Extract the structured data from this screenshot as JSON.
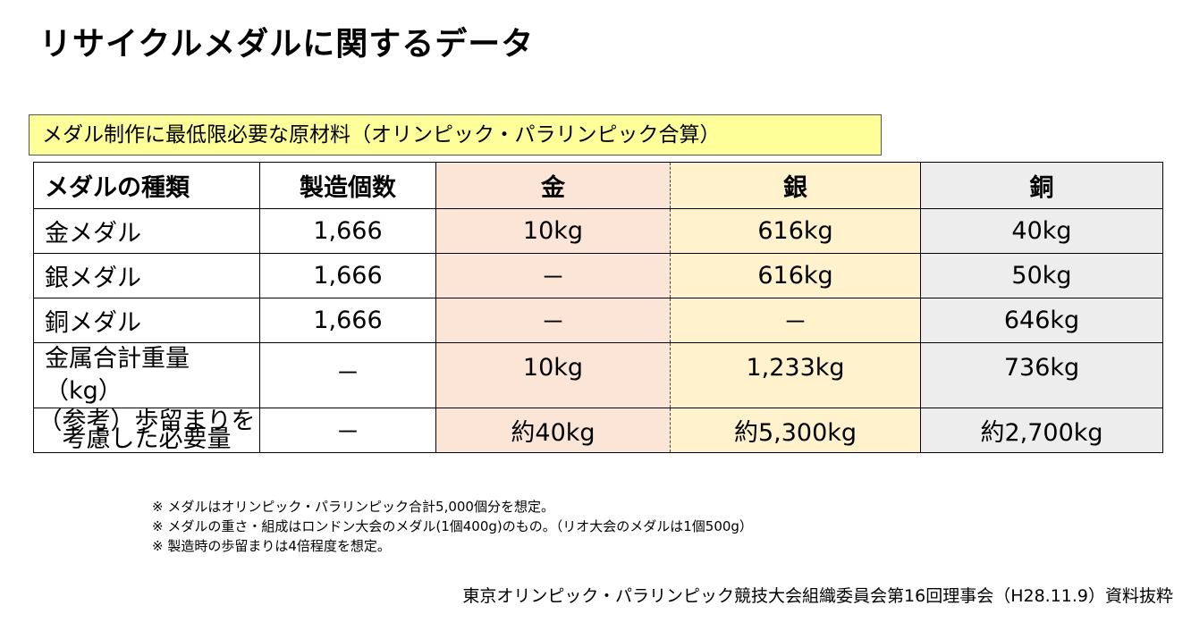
{
  "title": "リサイクルメダルに関するデータ",
  "caption": "メダル制作に最低限必要な原材料（オリンピック・パラリンピック合算）",
  "table": {
    "headers": [
      "メダルの種類",
      "製造個数",
      "金",
      "銀",
      "銅"
    ],
    "rows": [
      {
        "type": "金メダル",
        "count": "1,666",
        "gold": "10kg",
        "silver": "616kg",
        "bronze": "40kg"
      },
      {
        "type": "銀メダル",
        "count": "1,666",
        "gold": "－",
        "silver": "616kg",
        "bronze": "50kg"
      },
      {
        "type": "銅メダル",
        "count": "1,666",
        "gold": "－",
        "silver": "－",
        "bronze": "646kg"
      }
    ],
    "total": {
      "label_line1": "金属合計重量",
      "label_line2": "（kg）",
      "count": "－",
      "gold": "10kg",
      "silver": "1,233kg",
      "bronze": "736kg"
    },
    "reference": {
      "label": "（参考）歩留まりを考慮した必要量",
      "count": "－",
      "gold": "約40kg",
      "silver": "約5,300kg",
      "bronze": "約2,700kg"
    }
  },
  "notes": [
    "※ メダルはオリンピック・パラリンピック合計5,000個分を想定。",
    "※ メダルの重さ・組成はロンドン大会のメダル(1個400g)のもの。（リオ大会のメダルは1個500g）",
    "※ 製造時の歩留まりは4倍程度を想定。"
  ],
  "source": "東京オリンピック・パラリンピック競技大会組織委員会第16回理事会（H28.11.9）資料抜粋",
  "colors": {
    "gold_col": "#fbe5d6",
    "silver_col": "#fff2cc",
    "bronze_col": "#ededed",
    "caption_bg": "#ffff99"
  }
}
